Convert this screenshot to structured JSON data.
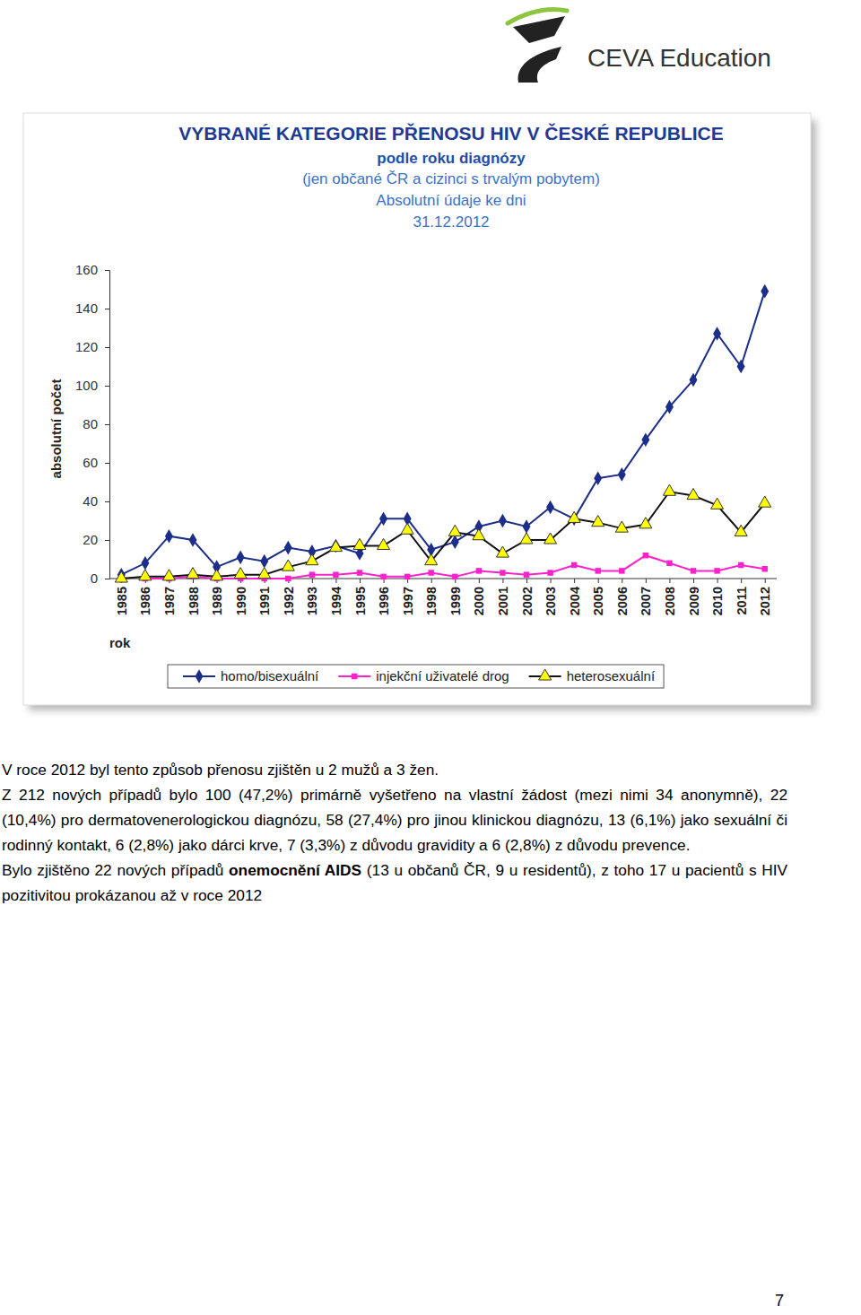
{
  "chart_data": {
    "type": "line",
    "title": "VYBRANÉ KATEGORIE PŘENOSU HIV V ČESKÉ REPUBLICE",
    "subtitle": [
      "podle roku diagnózy",
      "(jen občané ČR a cizinci s trvalým pobytem)",
      "Absolutní údaje ke dni",
      "31.12.2012"
    ],
    "x_label": "rok",
    "y_label": "absolutní počet",
    "categories": [
      "1985",
      "1986",
      "1987",
      "1988",
      "1989",
      "1990",
      "1991",
      "1992",
      "1993",
      "1994",
      "1995",
      "1996",
      "1997",
      "1998",
      "1999",
      "2000",
      "2001",
      "2002",
      "2003",
      "2004",
      "2005",
      "2006",
      "2007",
      "2008",
      "2009",
      "2010",
      "2011",
      "2012"
    ],
    "series": [
      {
        "name": "homo/bisexuální",
        "color": "#1c2e8a",
        "marker": "diamond",
        "values": [
          2,
          8,
          22,
          20,
          6,
          11,
          9,
          16,
          14,
          17,
          13,
          31,
          31,
          15,
          19,
          27,
          30,
          27,
          37,
          31,
          52,
          54,
          72,
          89,
          103,
          127,
          110,
          149
        ]
      },
      {
        "name": "injekční uživatelé drog",
        "color": "#ff22cc",
        "marker": "square",
        "values": [
          null,
          0,
          0,
          1,
          0,
          0,
          0,
          0,
          2,
          2,
          3,
          1,
          1,
          3,
          1,
          4,
          3,
          2,
          3,
          7,
          4,
          4,
          12,
          8,
          4,
          4,
          7,
          5
        ]
      },
      {
        "name": "heterosexuální",
        "color": "#ffff00",
        "marker": "triangle",
        "values": [
          0,
          1,
          1,
          2,
          1,
          2,
          2,
          6,
          9,
          16,
          17,
          17,
          25,
          9,
          24,
          22,
          13,
          20,
          20,
          31,
          29,
          26,
          28,
          45,
          43,
          38,
          24,
          39
        ]
      }
    ],
    "ylim": [
      0,
      160
    ],
    "yticks": [
      0,
      20,
      40,
      60,
      80,
      100,
      120,
      140,
      160
    ],
    "grid": false,
    "legend": "bottom"
  },
  "header": {
    "logo": "CEVA Education"
  },
  "text": {
    "paragraphs": [
      [
        {
          "text": "V roce 2012 byl tento způsob přenosu zjištěn u 2 mužů a 3 žen."
        }
      ],
      [
        {
          "text": "Z 212 nových případů bylo 100 (47,2%) primárně vyšetřeno na vlastní žádost (mezi nimi 34 anonymně), 22 (10,4%) pro dermatovenerologickou diagnózu, 58 (27,4%) pro jinou klinickou diagnózu, 13 (6,1%) jako sexuální či rodinný kontakt, 6 (2,8%) jako dárci krve, 7 (3,3%) z důvodu gravidity a 6 (2,8%) z důvodu prevence."
        }
      ],
      [
        {
          "text": "Bylo zjištěno 22 nových případů "
        },
        {
          "text": "onemocnění AIDS",
          "bold": true
        },
        {
          "text": " (13 u občanů ČR, 9 u residentů), z toho 17 u pacientů s HIV pozitivitou prokázanou až v roce 2012"
        }
      ]
    ]
  },
  "footer": {
    "page_number": "7"
  }
}
